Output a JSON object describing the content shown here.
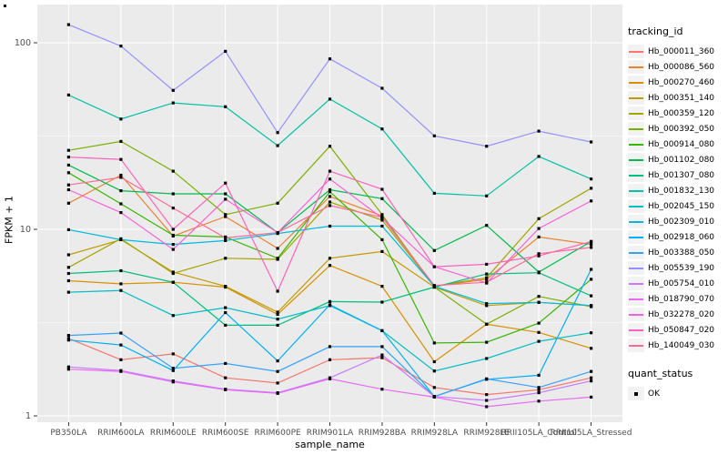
{
  "chart_data": {
    "type": "line",
    "title": "",
    "xlabel": "sample_name",
    "ylabel": "FPKM + 1",
    "y_scale": "log10",
    "y_ticks": [
      1,
      10,
      100
    ],
    "y_minor_ticks": [
      3.162,
      31.62
    ],
    "ylim": [
      0.95,
      160
    ],
    "grid": true,
    "legend_position": "right",
    "marker": "black-square",
    "categories": [
      "PB350LA",
      "RRIM600LA",
      "RRIM600LE",
      "RRIM600SE",
      "RRIM600PE",
      "RRIM901LA",
      "RRIM928BA",
      "RRIM928LA",
      "RRIM928LE",
      "RRII105LA_Control",
      "RRII105LA_Stressed"
    ],
    "series": [
      {
        "name": "Hb_000011_360",
        "color": "#F8766D",
        "values": [
          2.6,
          2.0,
          2.15,
          1.6,
          1.5,
          2.0,
          2.05,
          1.42,
          1.3,
          1.38,
          1.6
        ]
      },
      {
        "name": "Hb_000086_560",
        "color": "#EA8331",
        "values": [
          13.8,
          19.5,
          9.2,
          11.7,
          7.9,
          15.0,
          11.8,
          4.95,
          5.4,
          9.1,
          8.3
        ]
      },
      {
        "name": "Hb_000270_460",
        "color": "#D89000",
        "values": [
          5.3,
          5.1,
          5.2,
          4.9,
          3.5,
          6.4,
          4.95,
          1.95,
          3.1,
          2.8,
          2.3
        ]
      },
      {
        "name": "Hb_000351_140",
        "color": "#C09B00",
        "values": [
          7.3,
          8.8,
          5.9,
          4.95,
          3.6,
          7.0,
          7.6,
          4.9,
          3.9,
          4.06,
          3.9
        ]
      },
      {
        "name": "Hb_000359_120",
        "color": "#A3A500",
        "values": [
          6.25,
          8.9,
          5.8,
          7.0,
          6.9,
          14.0,
          11.2,
          4.95,
          5.5,
          11.4,
          16.6
        ]
      },
      {
        "name": "Hb_000392_050",
        "color": "#7CAE00",
        "values": [
          26.5,
          29.6,
          20.5,
          12.0,
          13.8,
          27.9,
          12.0,
          4.9,
          3.1,
          4.37,
          3.85
        ]
      },
      {
        "name": "Hb_000914_080",
        "color": "#39B600",
        "values": [
          20.1,
          13.7,
          9.3,
          9.1,
          7.0,
          15.9,
          8.8,
          2.46,
          2.48,
          3.14,
          5.4
        ]
      },
      {
        "name": "Hb_001102_080",
        "color": "#00BB4E",
        "values": [
          22.1,
          16.1,
          15.5,
          15.5,
          9.6,
          16.3,
          14.6,
          7.7,
          10.5,
          5.9,
          8.6
        ]
      },
      {
        "name": "Hb_001307_080",
        "color": "#00BF7D",
        "values": [
          5.8,
          6.0,
          5.2,
          3.06,
          3.06,
          4.1,
          4.07,
          4.9,
          5.76,
          5.85,
          4.4
        ]
      },
      {
        "name": "Hb_001832_130",
        "color": "#00C1A3",
        "values": [
          52.5,
          39.0,
          47.6,
          45.4,
          28.1,
          49.9,
          34.5,
          15.6,
          15.1,
          24.6,
          18.6
        ]
      },
      {
        "name": "Hb_002045_150",
        "color": "#00BFC4",
        "values": [
          4.6,
          4.7,
          3.45,
          3.8,
          3.3,
          3.9,
          2.86,
          1.74,
          2.03,
          2.51,
          2.79
        ]
      },
      {
        "name": "Hb_002309_010",
        "color": "#00BADE",
        "values": [
          9.95,
          8.8,
          8.3,
          8.7,
          9.5,
          10.4,
          10.4,
          4.95,
          4.0,
          4.06,
          3.9
        ]
      },
      {
        "name": "Hb_002918_060",
        "color": "#00B0F6",
        "values": [
          2.55,
          2.4,
          1.75,
          3.58,
          1.97,
          3.94,
          2.86,
          1.27,
          1.57,
          1.65,
          6.1
        ]
      },
      {
        "name": "Hb_003388_050",
        "color": "#35A2FF",
        "values": [
          2.7,
          2.78,
          1.8,
          1.91,
          1.73,
          2.35,
          2.35,
          1.27,
          1.58,
          1.42,
          1.73
        ]
      },
      {
        "name": "Hb_005539_190",
        "color": "#9590FF",
        "values": [
          125,
          96,
          55.6,
          90,
          33,
          82,
          57,
          31.7,
          27.9,
          33.6,
          29.4
        ]
      },
      {
        "name": "Hb_005754_010",
        "color": "#C77CFF",
        "values": [
          1.83,
          1.75,
          1.54,
          1.39,
          1.33,
          1.6,
          2.12,
          1.27,
          1.21,
          1.33,
          1.54
        ]
      },
      {
        "name": "Hb_018790_070",
        "color": "#E76BF3",
        "values": [
          1.78,
          1.73,
          1.52,
          1.38,
          1.32,
          1.58,
          1.39,
          1.26,
          1.12,
          1.2,
          1.26
        ]
      },
      {
        "name": "Hb_032278_020",
        "color": "#FA62DB",
        "values": [
          16.3,
          12.3,
          7.8,
          14.5,
          9.6,
          18.6,
          11.5,
          6.3,
          5.15,
          10.1,
          14.2
        ]
      },
      {
        "name": "Hb_050847_020",
        "color": "#FF62BC",
        "values": [
          24.4,
          23.7,
          10.0,
          17.7,
          4.66,
          20.5,
          16.4,
          6.3,
          6.5,
          7.2,
          8.6
        ]
      },
      {
        "name": "Hb_140049_030",
        "color": "#FF6A98",
        "values": [
          17.3,
          19.0,
          13.0,
          9.0,
          9.6,
          13.4,
          11.6,
          5.0,
          5.2,
          7.4,
          8.0
        ]
      }
    ]
  },
  "legend": {
    "tracking_title": "tracking_id",
    "quant_title": "quant_status",
    "quant_value": "OK"
  },
  "style": {
    "panel_bg": "#EBEBEB",
    "grid_color": "#FFFFFF",
    "tick_text_color": "#4D4D4D",
    "tick_mark_color": "#333333",
    "marker_color": "#000000",
    "legend_key_bg": "#F2F2F2"
  }
}
